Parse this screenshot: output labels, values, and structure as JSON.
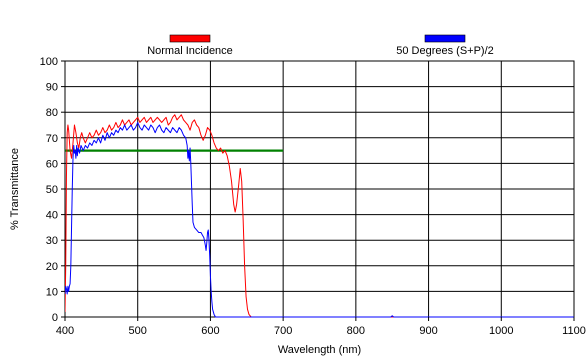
{
  "chart_data": {
    "type": "line",
    "title": "",
    "xlabel": "Wavelength (nm)",
    "ylabel": "% Transmittance",
    "xlim": [
      400,
      1100
    ],
    "ylim": [
      0,
      100
    ],
    "x_ticks": [
      400,
      500,
      600,
      700,
      800,
      900,
      1000,
      1100
    ],
    "y_ticks": [
      0,
      10,
      20,
      30,
      40,
      50,
      60,
      70,
      80,
      90,
      100
    ],
    "grid": true,
    "legend_position": "top",
    "series": [
      {
        "name": "Normal Incidence",
        "color": "#ff0000",
        "points": [
          [
            400,
            2
          ],
          [
            401,
            20
          ],
          [
            402,
            55
          ],
          [
            403,
            72
          ],
          [
            404,
            75
          ],
          [
            405,
            73
          ],
          [
            407,
            65
          ],
          [
            409,
            62
          ],
          [
            411,
            68
          ],
          [
            413,
            75
          ],
          [
            415,
            72
          ],
          [
            417,
            68
          ],
          [
            419,
            66
          ],
          [
            421,
            70
          ],
          [
            423,
            72
          ],
          [
            425,
            70
          ],
          [
            428,
            68
          ],
          [
            431,
            70
          ],
          [
            434,
            72
          ],
          [
            437,
            70
          ],
          [
            440,
            71
          ],
          [
            443,
            73
          ],
          [
            446,
            71
          ],
          [
            449,
            72
          ],
          [
            452,
            74
          ],
          [
            455,
            72
          ],
          [
            458,
            73
          ],
          [
            461,
            75
          ],
          [
            464,
            73
          ],
          [
            467,
            74
          ],
          [
            470,
            76
          ],
          [
            473,
            74
          ],
          [
            476,
            75
          ],
          [
            479,
            77
          ],
          [
            482,
            75
          ],
          [
            485,
            76
          ],
          [
            488,
            77
          ],
          [
            491,
            75
          ],
          [
            494,
            76
          ],
          [
            497,
            77
          ],
          [
            500,
            78
          ],
          [
            503,
            76
          ],
          [
            506,
            77
          ],
          [
            509,
            78
          ],
          [
            512,
            76
          ],
          [
            515,
            77
          ],
          [
            518,
            78
          ],
          [
            521,
            76
          ],
          [
            524,
            77
          ],
          [
            527,
            78
          ],
          [
            530,
            77
          ],
          [
            533,
            76
          ],
          [
            536,
            77
          ],
          [
            539,
            78
          ],
          [
            542,
            75
          ],
          [
            545,
            76
          ],
          [
            548,
            78
          ],
          [
            551,
            79
          ],
          [
            554,
            77
          ],
          [
            557,
            78
          ],
          [
            560,
            79
          ],
          [
            563,
            77
          ],
          [
            566,
            76
          ],
          [
            569,
            75
          ],
          [
            572,
            73
          ],
          [
            575,
            76
          ],
          [
            578,
            77
          ],
          [
            581,
            75
          ],
          [
            584,
            74
          ],
          [
            587,
            71
          ],
          [
            590,
            69
          ],
          [
            593,
            71
          ],
          [
            596,
            74
          ],
          [
            599,
            73
          ],
          [
            602,
            71
          ],
          [
            605,
            68
          ],
          [
            608,
            66
          ],
          [
            611,
            65
          ],
          [
            614,
            66
          ],
          [
            617,
            64
          ],
          [
            620,
            65
          ],
          [
            623,
            63
          ],
          [
            626,
            59
          ],
          [
            629,
            53
          ],
          [
            632,
            44
          ],
          [
            634,
            41
          ],
          [
            636,
            44
          ],
          [
            639,
            52
          ],
          [
            641,
            58
          ],
          [
            643,
            53
          ],
          [
            645,
            38
          ],
          [
            647,
            20
          ],
          [
            649,
            8
          ],
          [
            651,
            3
          ],
          [
            653,
            1
          ],
          [
            656,
            0
          ],
          [
            660,
            0
          ],
          [
            700,
            0
          ],
          [
            800,
            0
          ],
          [
            900,
            0
          ],
          [
            1000,
            0
          ],
          [
            1100,
            0
          ]
        ]
      },
      {
        "name": "50 Degrees (S+P)/2",
        "color": "#0000ff",
        "points": [
          [
            400,
            9
          ],
          [
            401,
            12
          ],
          [
            402,
            11
          ],
          [
            403,
            9
          ],
          [
            404,
            12
          ],
          [
            405,
            10
          ],
          [
            406,
            12
          ],
          [
            407,
            13
          ],
          [
            408,
            20
          ],
          [
            409,
            35
          ],
          [
            410,
            50
          ],
          [
            411,
            62
          ],
          [
            412,
            67
          ],
          [
            413,
            64
          ],
          [
            414,
            65
          ],
          [
            415,
            62
          ],
          [
            416,
            67
          ],
          [
            417,
            63
          ],
          [
            418,
            66
          ],
          [
            420,
            64
          ],
          [
            422,
            67
          ],
          [
            425,
            65
          ],
          [
            428,
            67
          ],
          [
            431,
            66
          ],
          [
            434,
            68
          ],
          [
            437,
            67
          ],
          [
            440,
            69
          ],
          [
            443,
            68
          ],
          [
            446,
            70
          ],
          [
            449,
            68
          ],
          [
            452,
            71
          ],
          [
            455,
            69
          ],
          [
            458,
            72
          ],
          [
            461,
            70
          ],
          [
            464,
            72
          ],
          [
            467,
            71
          ],
          [
            470,
            73
          ],
          [
            473,
            72
          ],
          [
            476,
            74
          ],
          [
            479,
            73
          ],
          [
            482,
            75
          ],
          [
            485,
            73
          ],
          [
            488,
            74
          ],
          [
            491,
            75
          ],
          [
            494,
            73
          ],
          [
            497,
            74
          ],
          [
            500,
            76
          ],
          [
            503,
            74
          ],
          [
            506,
            73
          ],
          [
            509,
            75
          ],
          [
            512,
            74
          ],
          [
            515,
            73
          ],
          [
            518,
            75
          ],
          [
            521,
            74
          ],
          [
            524,
            72
          ],
          [
            527,
            74
          ],
          [
            530,
            75
          ],
          [
            533,
            73
          ],
          [
            536,
            72
          ],
          [
            539,
            74
          ],
          [
            542,
            73
          ],
          [
            545,
            72
          ],
          [
            548,
            74
          ],
          [
            551,
            73
          ],
          [
            554,
            72
          ],
          [
            557,
            74
          ],
          [
            560,
            73
          ],
          [
            563,
            71
          ],
          [
            566,
            70
          ],
          [
            568,
            67
          ],
          [
            569,
            62
          ],
          [
            570,
            65
          ],
          [
            571,
            61
          ],
          [
            572,
            66
          ],
          [
            573,
            60
          ],
          [
            574,
            52
          ],
          [
            575,
            44
          ],
          [
            576,
            37
          ],
          [
            578,
            35
          ],
          [
            581,
            34
          ],
          [
            584,
            33
          ],
          [
            587,
            33
          ],
          [
            589,
            32
          ],
          [
            591,
            31
          ],
          [
            593,
            28
          ],
          [
            594,
            26
          ],
          [
            595,
            29
          ],
          [
            596,
            33
          ],
          [
            597,
            34
          ],
          [
            598,
            30
          ],
          [
            599,
            24
          ],
          [
            600,
            16
          ],
          [
            601,
            10
          ],
          [
            602,
            6
          ],
          [
            603,
            3
          ],
          [
            605,
            1
          ],
          [
            607,
            0
          ],
          [
            610,
            0
          ],
          [
            700,
            0
          ],
          [
            800,
            0
          ],
          [
            848,
            0
          ],
          [
            850,
            0.5
          ],
          [
            852,
            0
          ],
          [
            900,
            0
          ],
          [
            1000,
            0
          ],
          [
            1100,
            0
          ]
        ]
      },
      {
        "name": "",
        "color": "#008000",
        "points": [
          [
            400,
            65
          ],
          [
            700,
            65
          ]
        ]
      }
    ]
  }
}
